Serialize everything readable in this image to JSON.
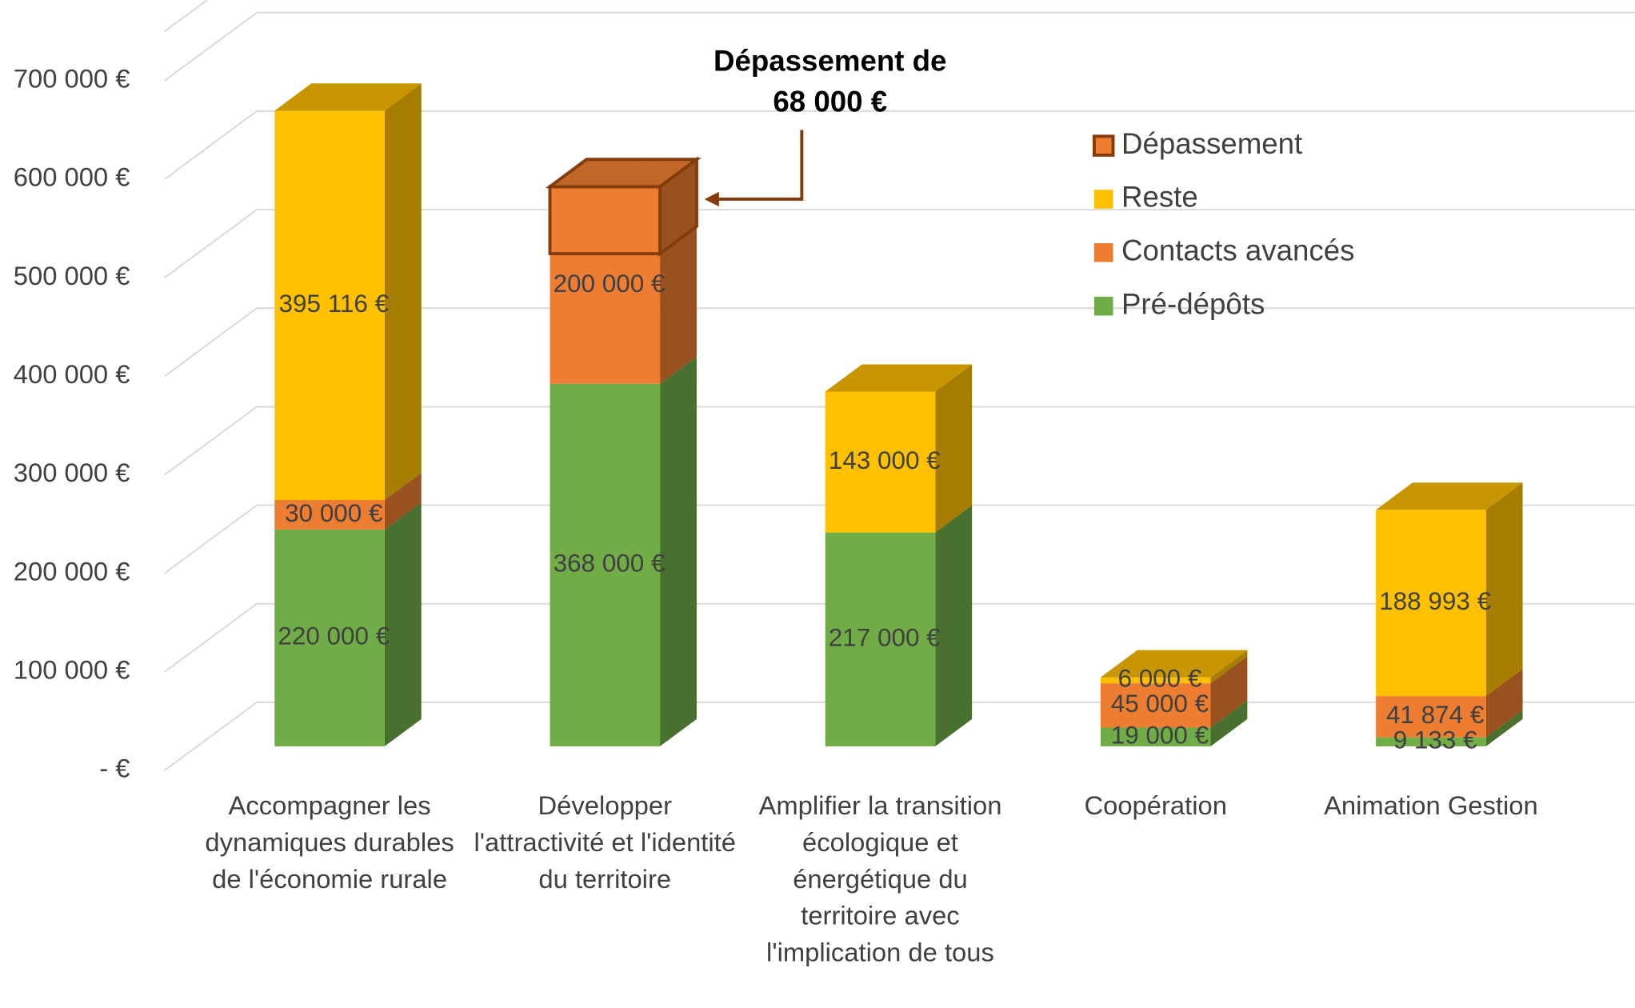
{
  "chart_data": {
    "type": "bar3d_stacked",
    "categories": [
      "Accompagner les dynamiques durables de l'économie rurale",
      "Développer l'attractivité et l'identité du territoire",
      "Amplifier la transition écologique et énergétique du territoire avec l'implication de tous",
      "Coopération",
      "Animation Gestion"
    ],
    "series": [
      {
        "name": "Pré-dépôts",
        "color": "#70ad47",
        "values": [
          220000,
          368000,
          217000,
          19000,
          9133
        ],
        "value_labels": [
          "220 000 €",
          "368 000 €",
          "217 000 €",
          "19 000 €",
          "9 133 €"
        ]
      },
      {
        "name": "Contacts avancés",
        "color": "#ed7d31",
        "values": [
          30000,
          200000,
          null,
          45000,
          41874
        ],
        "value_labels": [
          "30 000 €",
          "200 000 €",
          null,
          "45 000 €",
          "41 874 €"
        ]
      },
      {
        "name": "Reste",
        "color": "#ffc000",
        "values": [
          395116,
          null,
          143000,
          6000,
          188993
        ],
        "value_labels": [
          "395 116 €",
          null,
          "143 000 €",
          "6 000 €",
          "188 993 €"
        ]
      },
      {
        "name": "Dépassement",
        "color": "#ed7d31",
        "border": "#843c0c",
        "overlay": true,
        "values": [
          null,
          68000,
          null,
          null,
          null
        ]
      }
    ],
    "annotation": [
      "Dépassement de",
      "68 000 €"
    ],
    "ylim": [
      0,
      750000
    ],
    "yticks": [
      {
        "value": 0,
        "label": "-  €"
      },
      {
        "value": 100000,
        "label": "100 000 €"
      },
      {
        "value": 200000,
        "label": "200 000 €"
      },
      {
        "value": 300000,
        "label": "300 000 €"
      },
      {
        "value": 400000,
        "label": "400 000 €"
      },
      {
        "value": 500000,
        "label": "500 000 €"
      },
      {
        "value": 600000,
        "label": "600 000 €"
      },
      {
        "value": 700000,
        "label": "700 000 €"
      }
    ],
    "grid": true,
    "legend": "upper right"
  }
}
